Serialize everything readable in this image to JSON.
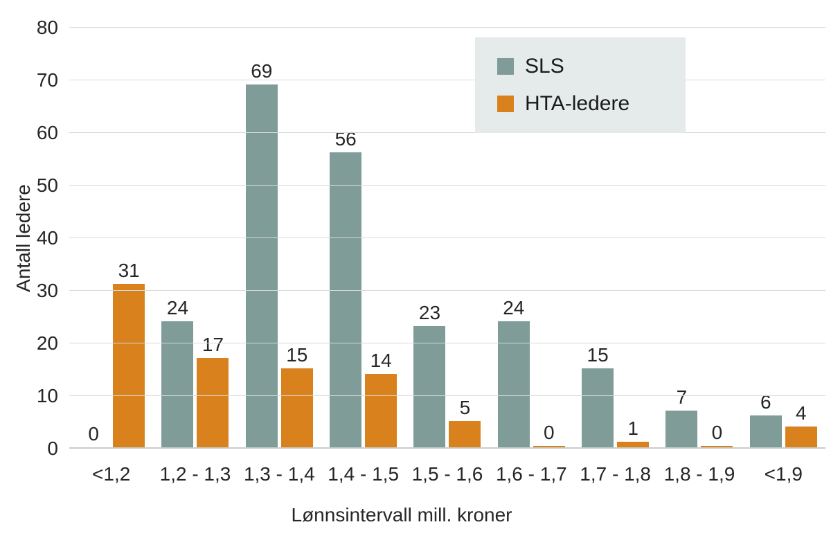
{
  "chart_data": {
    "type": "bar",
    "title": "",
    "categories": [
      "<1,2",
      "1,2 - 1,3",
      "1,3 - 1,4",
      "1,4 - 1,5",
      "1,5 - 1,6",
      "1,6 - 1,7",
      "1,7 - 1,8",
      "1,8 - 1,9",
      "<1,9"
    ],
    "series": [
      {
        "name": "SLS",
        "color": "#7f9c99",
        "values": [
          0,
          24,
          69,
          56,
          23,
          24,
          15,
          7,
          6
        ]
      },
      {
        "name": "HTA-ledere",
        "color": "#d9821d",
        "values": [
          31,
          17,
          15,
          14,
          5,
          0,
          1,
          0,
          4
        ]
      }
    ],
    "xlabel": "Lønnsintervall mill. kroner",
    "ylabel": "Antall ledere",
    "ylim": [
      0,
      80
    ],
    "ytick_step": 10,
    "grid": true,
    "value_labels": true,
    "legend_position": "top-right",
    "legend_bg": "#e5eaea"
  }
}
